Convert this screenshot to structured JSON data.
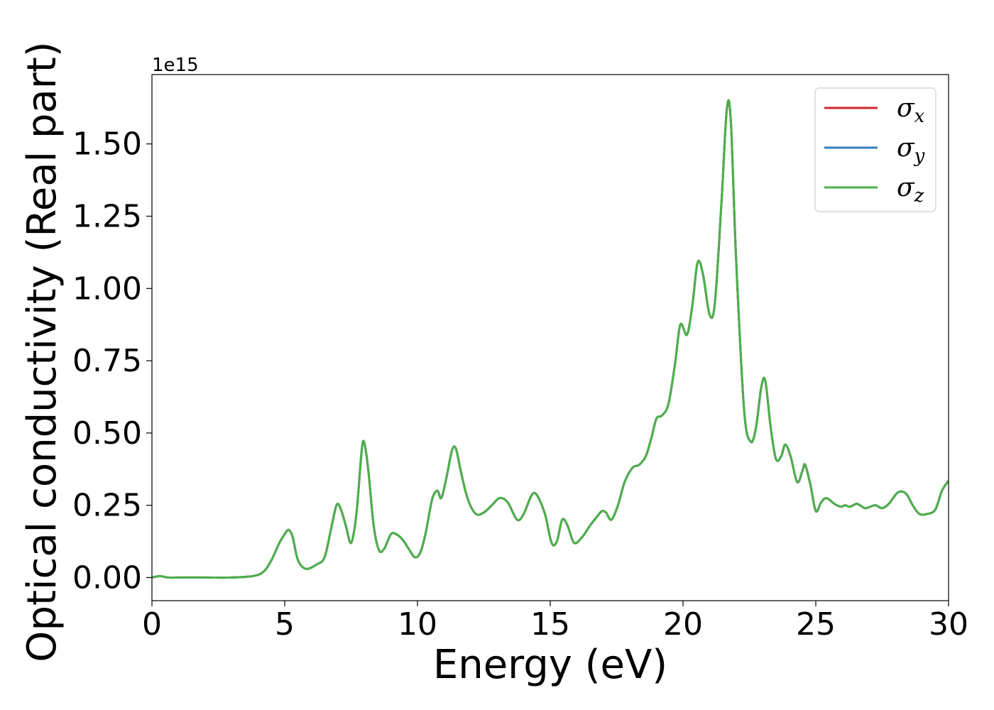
{
  "chart_data": {
    "type": "line",
    "xlabel": "Energy (eV)",
    "ylabel": "Optical conductivity (Real part)",
    "y_offset_text": "1e15",
    "y_scale_factor": 1000000000000000.0,
    "xlim": [
      0,
      30
    ],
    "ylim": [
      -0.08,
      1.74
    ],
    "x_ticks": [
      0,
      5,
      10,
      15,
      20,
      25,
      30
    ],
    "x_tick_labels": [
      "0",
      "5",
      "10",
      "15",
      "20",
      "25",
      "30"
    ],
    "y_ticks": [
      0.0,
      0.25,
      0.5,
      0.75,
      1.0,
      1.25,
      1.5
    ],
    "y_tick_labels": [
      "0.00",
      "0.25",
      "0.50",
      "0.75",
      "1.00",
      "1.25",
      "1.50"
    ],
    "grid": false,
    "legend_position": "top-right",
    "x": [
      0,
      0.3,
      0.6,
      1.0,
      2.0,
      3.0,
      3.8,
      4.2,
      4.5,
      4.8,
      5.0,
      5.15,
      5.3,
      5.5,
      5.8,
      6.2,
      6.5,
      6.75,
      6.95,
      7.1,
      7.3,
      7.5,
      7.7,
      7.9,
      8.0,
      8.15,
      8.35,
      8.55,
      8.75,
      9.0,
      9.2,
      9.45,
      9.7,
      9.9,
      10.1,
      10.3,
      10.55,
      10.75,
      10.9,
      11.1,
      11.3,
      11.45,
      11.65,
      11.9,
      12.2,
      12.5,
      12.8,
      13.1,
      13.4,
      13.75,
      14.0,
      14.3,
      14.5,
      14.8,
      15.05,
      15.25,
      15.45,
      15.65,
      15.9,
      16.2,
      16.5,
      16.8,
      16.95,
      17.1,
      17.3,
      17.55,
      17.8,
      18.1,
      18.35,
      18.6,
      18.8,
      19.0,
      19.2,
      19.45,
      19.7,
      19.9,
      20.15,
      20.35,
      20.55,
      20.75,
      21.0,
      21.2,
      21.45,
      21.65,
      21.8,
      22.0,
      22.3,
      22.55,
      22.75,
      22.95,
      23.1,
      23.3,
      23.5,
      23.7,
      23.85,
      24.05,
      24.3,
      24.5,
      24.6,
      24.8,
      25.0,
      25.2,
      25.4,
      25.7,
      25.95,
      26.1,
      26.3,
      26.55,
      26.85,
      27.05,
      27.25,
      27.5,
      27.75,
      28.1,
      28.4,
      28.65,
      28.9,
      29.2,
      29.5,
      29.75,
      30.0
    ],
    "series": [
      {
        "name": "σx",
        "color": "#d62728",
        "y": [
          0.0,
          0.005,
          0.0,
          0.0,
          0.0,
          0.0,
          0.005,
          0.02,
          0.06,
          0.12,
          0.15,
          0.165,
          0.14,
          0.06,
          0.03,
          0.045,
          0.07,
          0.17,
          0.25,
          0.24,
          0.18,
          0.12,
          0.22,
          0.44,
          0.465,
          0.37,
          0.18,
          0.095,
          0.1,
          0.15,
          0.15,
          0.13,
          0.095,
          0.07,
          0.085,
          0.15,
          0.27,
          0.3,
          0.275,
          0.35,
          0.44,
          0.445,
          0.36,
          0.27,
          0.22,
          0.225,
          0.25,
          0.275,
          0.26,
          0.2,
          0.22,
          0.285,
          0.285,
          0.22,
          0.12,
          0.125,
          0.2,
          0.18,
          0.12,
          0.14,
          0.18,
          0.215,
          0.23,
          0.225,
          0.2,
          0.25,
          0.33,
          0.38,
          0.39,
          0.42,
          0.48,
          0.55,
          0.56,
          0.6,
          0.74,
          0.875,
          0.84,
          0.94,
          1.09,
          1.05,
          0.91,
          0.95,
          1.3,
          1.62,
          1.58,
          1.1,
          0.58,
          0.47,
          0.52,
          0.66,
          0.68,
          0.52,
          0.41,
          0.42,
          0.46,
          0.42,
          0.33,
          0.37,
          0.39,
          0.32,
          0.23,
          0.26,
          0.275,
          0.255,
          0.245,
          0.25,
          0.245,
          0.255,
          0.24,
          0.245,
          0.25,
          0.24,
          0.255,
          0.295,
          0.29,
          0.25,
          0.22,
          0.22,
          0.235,
          0.3,
          0.335
        ]
      },
      {
        "name": "σy",
        "color": "#377eb8",
        "y": [
          0.0,
          0.005,
          0.0,
          0.0,
          0.0,
          0.0,
          0.005,
          0.02,
          0.06,
          0.12,
          0.15,
          0.165,
          0.14,
          0.06,
          0.03,
          0.045,
          0.07,
          0.17,
          0.25,
          0.24,
          0.18,
          0.12,
          0.22,
          0.44,
          0.465,
          0.37,
          0.18,
          0.095,
          0.1,
          0.15,
          0.15,
          0.13,
          0.095,
          0.07,
          0.085,
          0.15,
          0.27,
          0.3,
          0.275,
          0.35,
          0.44,
          0.445,
          0.36,
          0.27,
          0.22,
          0.225,
          0.25,
          0.275,
          0.26,
          0.2,
          0.22,
          0.285,
          0.285,
          0.22,
          0.12,
          0.125,
          0.2,
          0.18,
          0.12,
          0.14,
          0.18,
          0.215,
          0.23,
          0.225,
          0.2,
          0.25,
          0.33,
          0.38,
          0.39,
          0.42,
          0.48,
          0.55,
          0.56,
          0.6,
          0.74,
          0.875,
          0.84,
          0.94,
          1.09,
          1.05,
          0.91,
          0.95,
          1.3,
          1.62,
          1.58,
          1.1,
          0.58,
          0.47,
          0.52,
          0.66,
          0.68,
          0.52,
          0.41,
          0.42,
          0.46,
          0.42,
          0.33,
          0.37,
          0.39,
          0.32,
          0.23,
          0.26,
          0.275,
          0.255,
          0.245,
          0.25,
          0.245,
          0.255,
          0.24,
          0.245,
          0.25,
          0.24,
          0.255,
          0.295,
          0.29,
          0.25,
          0.22,
          0.22,
          0.235,
          0.3,
          0.335
        ]
      },
      {
        "name": "σz",
        "color": "#4daf4a",
        "y": [
          0.0,
          0.005,
          0.0,
          0.0,
          0.0,
          0.0,
          0.005,
          0.02,
          0.06,
          0.12,
          0.15,
          0.165,
          0.14,
          0.06,
          0.03,
          0.045,
          0.07,
          0.17,
          0.25,
          0.24,
          0.18,
          0.12,
          0.22,
          0.44,
          0.465,
          0.37,
          0.18,
          0.095,
          0.1,
          0.15,
          0.15,
          0.13,
          0.095,
          0.07,
          0.085,
          0.15,
          0.27,
          0.3,
          0.275,
          0.35,
          0.44,
          0.445,
          0.36,
          0.27,
          0.22,
          0.225,
          0.25,
          0.275,
          0.26,
          0.2,
          0.22,
          0.285,
          0.285,
          0.22,
          0.12,
          0.125,
          0.2,
          0.18,
          0.12,
          0.14,
          0.18,
          0.215,
          0.23,
          0.225,
          0.2,
          0.25,
          0.33,
          0.38,
          0.39,
          0.42,
          0.48,
          0.55,
          0.56,
          0.6,
          0.74,
          0.875,
          0.84,
          0.94,
          1.09,
          1.05,
          0.91,
          0.95,
          1.3,
          1.62,
          1.58,
          1.1,
          0.58,
          0.47,
          0.52,
          0.66,
          0.68,
          0.52,
          0.41,
          0.42,
          0.46,
          0.42,
          0.33,
          0.37,
          0.39,
          0.32,
          0.23,
          0.26,
          0.275,
          0.255,
          0.245,
          0.25,
          0.245,
          0.255,
          0.24,
          0.245,
          0.25,
          0.24,
          0.255,
          0.295,
          0.29,
          0.25,
          0.22,
          0.22,
          0.235,
          0.3,
          0.335
        ]
      }
    ],
    "legend": [
      {
        "symbol": "σ",
        "subscript": "x",
        "color": "#d62728"
      },
      {
        "symbol": "σ",
        "subscript": "y",
        "color": "#377eb8"
      },
      {
        "symbol": "σ",
        "subscript": "z",
        "color": "#4daf4a"
      }
    ]
  }
}
